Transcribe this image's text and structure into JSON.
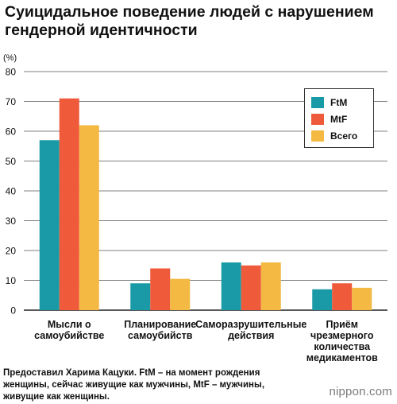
{
  "title": "Суицидальное поведение людей с нарушением гендерной идентичности",
  "note": "Предоставил Харима Кацуки. FtM – на момент рождения женщины, сейчас живущие как мужчины, MtF – мужчины, живущие как женщины.",
  "logo": "nippon.com",
  "chart_data": {
    "type": "bar",
    "ylabel": "(%)",
    "ylim": [
      0,
      80
    ],
    "yticks": [
      0,
      10,
      20,
      30,
      40,
      50,
      60,
      70,
      80
    ],
    "grid": true,
    "legend_position": "top-right",
    "categories": [
      [
        "Мысли о",
        "самоубийстве"
      ],
      [
        "Планирование",
        "самоубийств"
      ],
      [
        "Саморазрушительные",
        "действия"
      ],
      [
        "Приём",
        "чрезмерного",
        "количества",
        "медикаментов"
      ]
    ],
    "series": [
      {
        "name": "FtM",
        "color": "#1a9aa6",
        "values": [
          57,
          9,
          16,
          7
        ]
      },
      {
        "name": "MtF",
        "color": "#ee5a3a",
        "values": [
          71,
          14,
          15,
          9
        ]
      },
      {
        "name": "Всего",
        "color": "#f3b942",
        "values": [
          62,
          10.5,
          16,
          7.5
        ]
      }
    ]
  }
}
